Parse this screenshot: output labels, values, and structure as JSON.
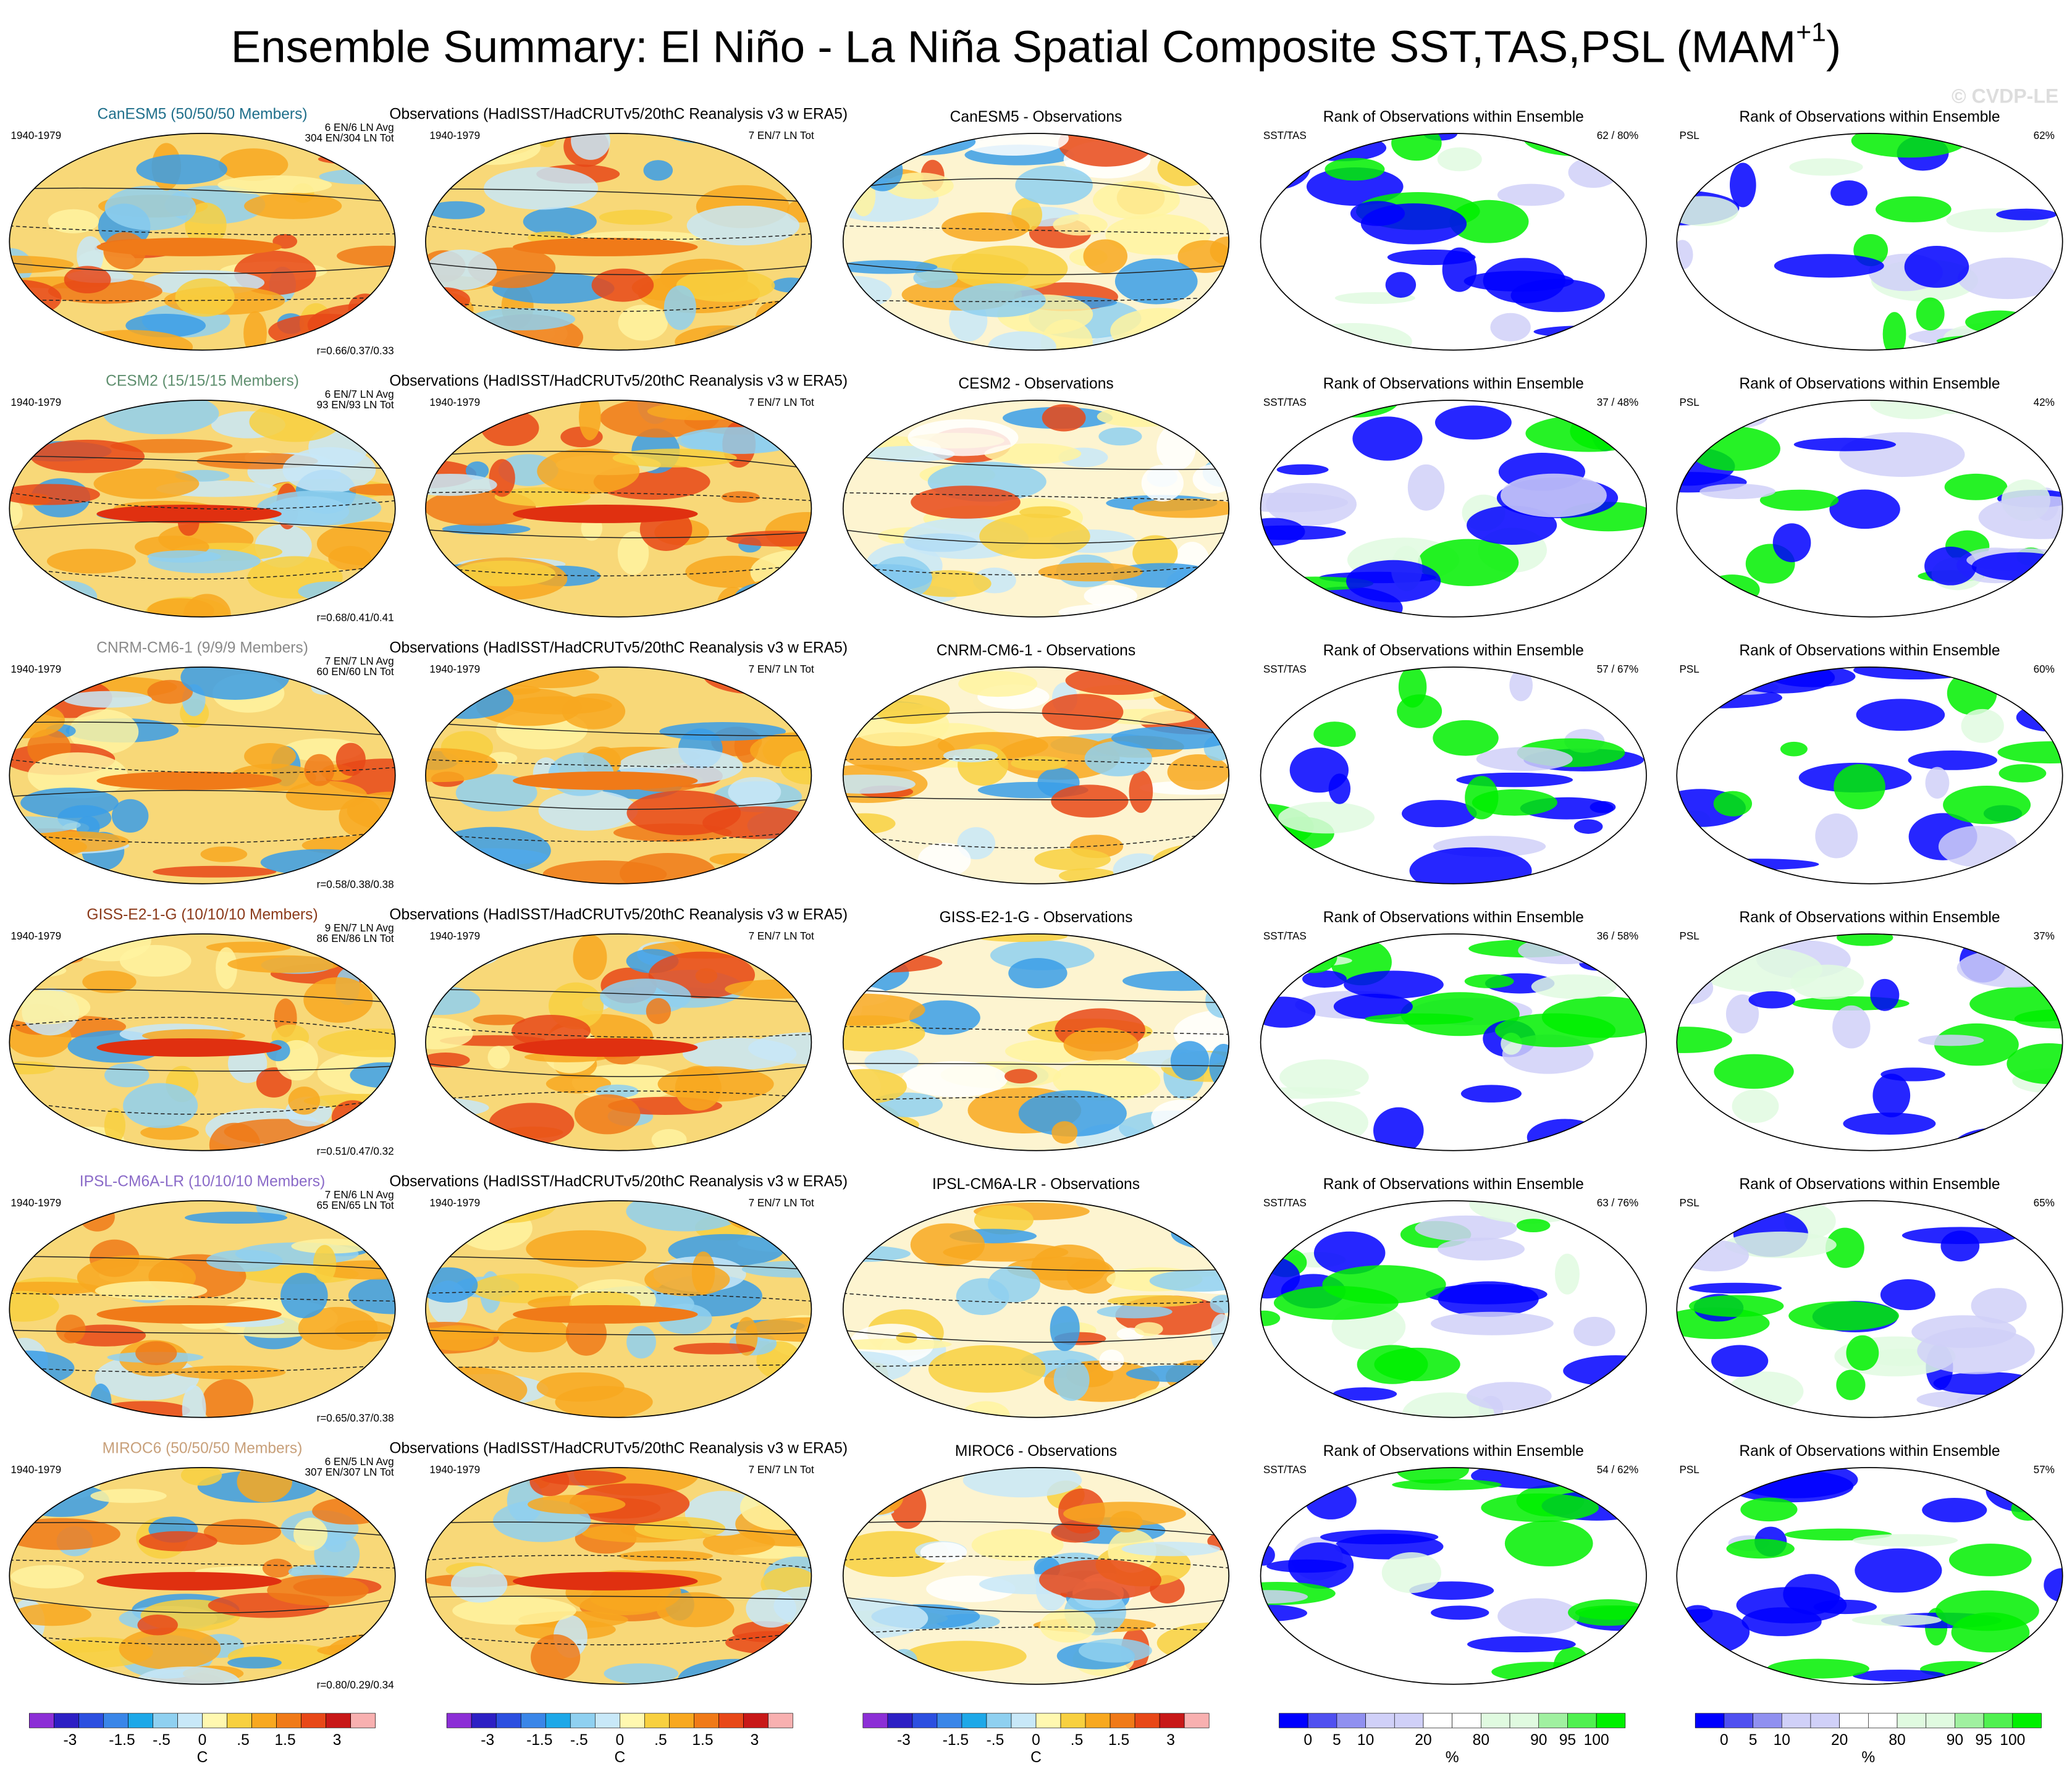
{
  "title": "Ensemble Summary: El Niño - La Niña Spatial Composite SST,TAS,PSL (MAM",
  "title_superscript": "+1",
  "title_end": ")",
  "watermark": "© CVDP-LE",
  "rows": [
    {
      "model_label": "CanESM5 (50/50/50 Members)",
      "label_color": "#1f6f8b",
      "period": "1940-1979",
      "stats": [
        "6 EN/6 LN Avg",
        "304 EN/304 LN Tot"
      ],
      "r": "r=0.66/0.37/0.33",
      "obs_title": "Observations (HadISST/HadCRUTv5/20thC Reanalysis v3 w ERA5)",
      "obs_period": "1940-1979",
      "obs_counts": "7 EN/7 LN Tot",
      "diff_title": "CanESM5 - Observations",
      "rank_title": "Rank of Observations within Ensemble",
      "rank_label": "SST/TAS",
      "rank_pct": "62 /  80%",
      "psl_title": "Rank of Observations within Ensemble",
      "psl_label": "PSL",
      "psl_pct": "62%"
    },
    {
      "model_label": "CESM2 (15/15/15 Members)",
      "label_color": "#5f8f6f",
      "period": "1940-1979",
      "stats": [
        "6 EN/7 LN Avg",
        "93 EN/93 LN Tot"
      ],
      "r": "r=0.68/0.41/0.41",
      "obs_title": "Observations (HadISST/HadCRUTv5/20thC Reanalysis v3 w ERA5)",
      "obs_period": "1940-1979",
      "obs_counts": "7 EN/7 LN Tot",
      "diff_title": "CESM2 - Observations",
      "rank_title": "Rank of Observations within Ensemble",
      "rank_label": "SST/TAS",
      "rank_pct": "37 /  48%",
      "psl_title": "Rank of Observations within Ensemble",
      "psl_label": "PSL",
      "psl_pct": "42%"
    },
    {
      "model_label": "CNRM-CM6-1 (9/9/9 Members)",
      "label_color": "#8a8a8a",
      "period": "1940-1979",
      "stats": [
        "7 EN/7 LN Avg",
        "60 EN/60 LN Tot"
      ],
      "r": "r=0.58/0.38/0.38",
      "obs_title": "Observations (HadISST/HadCRUTv5/20thC Reanalysis v3 w ERA5)",
      "obs_period": "1940-1979",
      "obs_counts": "7 EN/7 LN Tot",
      "diff_title": "CNRM-CM6-1 - Observations",
      "rank_title": "Rank of Observations within Ensemble",
      "rank_label": "SST/TAS",
      "rank_pct": "57 /  67%",
      "psl_title": "Rank of Observations within Ensemble",
      "psl_label": "PSL",
      "psl_pct": "60%"
    },
    {
      "model_label": "GISS-E2-1-G (10/10/10 Members)",
      "label_color": "#8b3a1a",
      "period": "1940-1979",
      "stats": [
        "9 EN/7 LN Avg",
        "86 EN/86 LN Tot"
      ],
      "r": "r=0.51/0.47/0.32",
      "obs_title": "Observations (HadISST/HadCRUTv5/20thC Reanalysis v3 w ERA5)",
      "obs_period": "1940-1979",
      "obs_counts": "7 EN/7 LN Tot",
      "diff_title": "GISS-E2-1-G - Observations",
      "rank_title": "Rank of Observations within Ensemble",
      "rank_label": "SST/TAS",
      "rank_pct": "36 /  58%",
      "psl_title": "Rank of Observations within Ensemble",
      "psl_label": "PSL",
      "psl_pct": "37%"
    },
    {
      "model_label": "IPSL-CM6A-LR (10/10/10 Members)",
      "label_color": "#8a6ac8",
      "period": "1940-1979",
      "stats": [
        "7 EN/6 LN Avg",
        "65 EN/65 LN Tot"
      ],
      "r": "r=0.65/0.37/0.38",
      "obs_title": "Observations (HadISST/HadCRUTv5/20thC Reanalysis v3 w ERA5)",
      "obs_period": "1940-1979",
      "obs_counts": "7 EN/7 LN Tot",
      "diff_title": "IPSL-CM6A-LR - Observations",
      "rank_title": "Rank of Observations within Ensemble",
      "rank_label": "SST/TAS",
      "rank_pct": "63 /  76%",
      "psl_title": "Rank of Observations within Ensemble",
      "psl_label": "PSL",
      "psl_pct": "65%"
    },
    {
      "model_label": "MIROC6 (50/50/50 Members)",
      "label_color": "#c8a07a",
      "period": "1940-1979",
      "stats": [
        "6 EN/5 LN Avg",
        "307 EN/307 LN Tot"
      ],
      "r": "r=0.80/0.29/0.34",
      "obs_title": "Observations (HadISST/HadCRUTv5/20thC Reanalysis v3 w ERA5)",
      "obs_period": "1940-1979",
      "obs_counts": "7 EN/7 LN Tot",
      "diff_title": "MIROC6 - Observations",
      "rank_title": "Rank of Observations within Ensemble",
      "rank_label": "SST/TAS",
      "rank_pct": "54 /  62%",
      "psl_title": "Rank of Observations within Ensemble",
      "psl_label": "PSL",
      "psl_pct": "57%"
    }
  ],
  "colorbars": [
    {
      "colors": [
        "#8c2fd6",
        "#2d1fc4",
        "#2c4fe0",
        "#3a86e8",
        "#1ea8e8",
        "#8fd0f0",
        "#c8e8f8",
        "#fff8b0",
        "#f8d040",
        "#f8a820",
        "#f07a18",
        "#e84818",
        "#c81818",
        "#f8b0b0"
      ],
      "labels": [
        "-3",
        "-1.5",
        "-.5",
        "0",
        ".5",
        "1.5",
        "3"
      ],
      "unit": "C"
    },
    {
      "colors": [
        "#8c2fd6",
        "#2d1fc4",
        "#2c4fe0",
        "#3a86e8",
        "#1ea8e8",
        "#8fd0f0",
        "#c8e8f8",
        "#fff8b0",
        "#f8d040",
        "#f8a820",
        "#f07a18",
        "#e84818",
        "#c81818",
        "#f8b0b0"
      ],
      "labels": [
        "-3",
        "-1.5",
        "-.5",
        "0",
        ".5",
        "1.5",
        "3"
      ],
      "unit": "C"
    },
    {
      "colors": [
        "#8c2fd6",
        "#2d1fc4",
        "#2c4fe0",
        "#3a86e8",
        "#1ea8e8",
        "#8fd0f0",
        "#c8e8f8",
        "#fff8b0",
        "#f8d040",
        "#f8a820",
        "#f07a18",
        "#e84818",
        "#c81818",
        "#f8b0b0"
      ],
      "labels": [
        "-3",
        "-1.5",
        "-.5",
        "0",
        ".5",
        "1.5",
        "3"
      ],
      "unit": "C"
    },
    {
      "colors": [
        "#0000ff",
        "#5050f0",
        "#9090f0",
        "#d0d0f8",
        "#d0d0f8",
        "#ffffff",
        "#ffffff",
        "#e0fae0",
        "#e0fae0",
        "#a0f0a0",
        "#50f050",
        "#00f000"
      ],
      "labels": [
        "0",
        "5",
        "10",
        "20",
        "80",
        "90",
        "95",
        "100"
      ],
      "unit": "%"
    },
    {
      "colors": [
        "#0000ff",
        "#5050f0",
        "#9090f0",
        "#d0d0f8",
        "#d0d0f8",
        "#ffffff",
        "#ffffff",
        "#e0fae0",
        "#e0fae0",
        "#a0f0a0",
        "#50f050",
        "#00f000"
      ],
      "labels": [
        "0",
        "5",
        "10",
        "20",
        "80",
        "90",
        "95",
        "100"
      ],
      "unit": "%"
    }
  ]
}
